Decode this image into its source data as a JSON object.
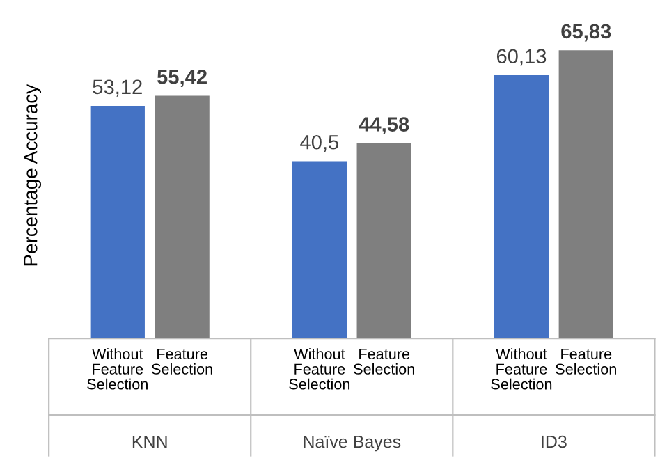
{
  "chart_data": {
    "type": "bar",
    "ylabel": "Percentage Accuracy",
    "categories": [
      "KNN",
      "Naïve Bayes",
      "ID3"
    ],
    "series": [
      {
        "name": "Without Feature Selection",
        "color": "#4472c4",
        "values": [
          53.12,
          40.5,
          60.13
        ],
        "value_labels": [
          "53,12",
          "40,5",
          "60,13"
        ]
      },
      {
        "name": "Feature Selection",
        "color": "#7f7f7f",
        "values": [
          55.42,
          44.58,
          65.83
        ],
        "value_labels": [
          "55,42",
          "44,58",
          "65,83"
        ]
      }
    ],
    "tick_labels": "x",
    "grid": false,
    "legend": false
  }
}
